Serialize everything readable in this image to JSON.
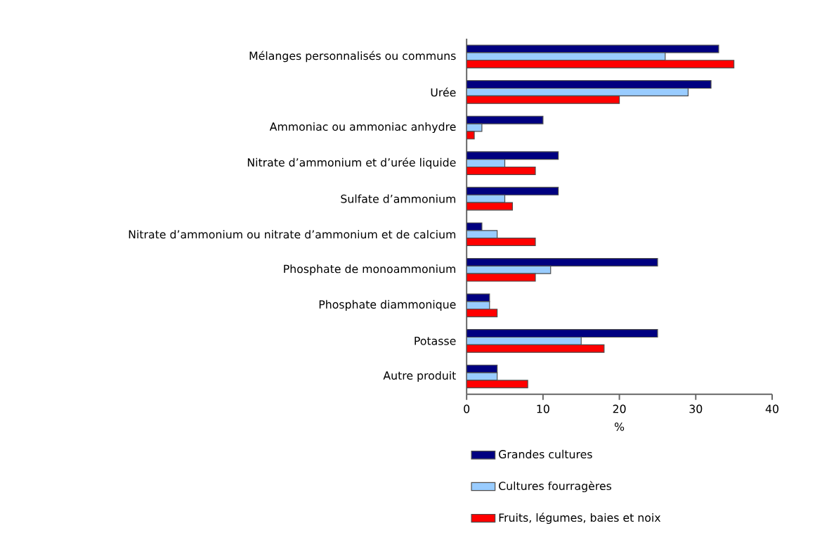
{
  "chart_data": {
    "type": "bar",
    "orientation": "horizontal",
    "xlabel": "%",
    "categories": [
      "Mélanges personnalisés ou communs",
      "Urée",
      "Ammoniac ou ammoniac anhydre",
      "Nitrate d’ammonium et d’urée liquide",
      "Sulfate d’ammonium",
      "Nitrate d’ammonium ou nitrate d’ammonium et de calcium",
      "Phosphate de monoammonium",
      "Phosphate diammonique",
      "Potasse",
      "Autre produit"
    ],
    "series": [
      {
        "name": "Grandes cultures",
        "color": "#000080",
        "values": [
          33,
          32,
          10,
          12,
          12,
          2,
          25,
          3,
          25,
          4
        ]
      },
      {
        "name": "Cultures fourragères",
        "color": "#99ccff",
        "values": [
          26,
          29,
          2,
          5,
          5,
          4,
          11,
          3,
          15,
          4
        ]
      },
      {
        "name": "Fruits, légumes, baies et noix",
        "color": "#ff0000",
        "values": [
          35,
          20,
          1,
          9,
          6,
          9,
          9,
          4,
          18,
          8
        ]
      }
    ],
    "xlim": [
      0,
      40
    ],
    "xticks": [
      0,
      10,
      20,
      30,
      40
    ],
    "grid": false,
    "legend": "bottom"
  }
}
